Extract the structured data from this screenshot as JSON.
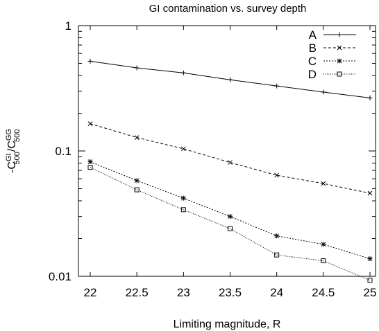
{
  "chart_data": {
    "type": "line",
    "title": "GI contamination vs. survey depth",
    "xlabel": "Limiting magnitude, R",
    "ylabel": {
      "prefix": "-C",
      "num_sup": "GI",
      "num_sub": "500",
      "sep": "/C",
      "den_sup": "GG",
      "den_sub": "500"
    },
    "x": [
      22,
      22.5,
      23,
      23.5,
      24,
      24.5,
      25
    ],
    "xlim": [
      22,
      25
    ],
    "ylim": [
      0.01,
      1
    ],
    "yscale": "log",
    "x_ticks": [
      "22",
      "22.5",
      "23",
      "23.5",
      "24",
      "24.5",
      "25"
    ],
    "y_ticks": [
      {
        "value": 1,
        "label": "1"
      },
      {
        "value": 0.1,
        "label": "0.1"
      },
      {
        "value": 0.01,
        "label": "0.01"
      }
    ],
    "grid": false,
    "legend_position": "top-right",
    "series": [
      {
        "name": "A",
        "marker": "plus",
        "dash": "solid",
        "values": [
          0.52,
          0.46,
          0.42,
          0.37,
          0.33,
          0.295,
          0.265
        ]
      },
      {
        "name": "B",
        "marker": "cross",
        "dash": "dashed",
        "values": [
          0.165,
          0.128,
          0.104,
          0.081,
          0.064,
          0.055,
          0.046
        ]
      },
      {
        "name": "C",
        "marker": "star",
        "dash": "dotted",
        "values": [
          0.082,
          0.058,
          0.042,
          0.03,
          0.021,
          0.018,
          0.0138
        ]
      },
      {
        "name": "D",
        "marker": "square",
        "dash": "finedot",
        "values": [
          0.074,
          0.049,
          0.034,
          0.024,
          0.0148,
          0.0133,
          0.0093
        ]
      }
    ]
  }
}
